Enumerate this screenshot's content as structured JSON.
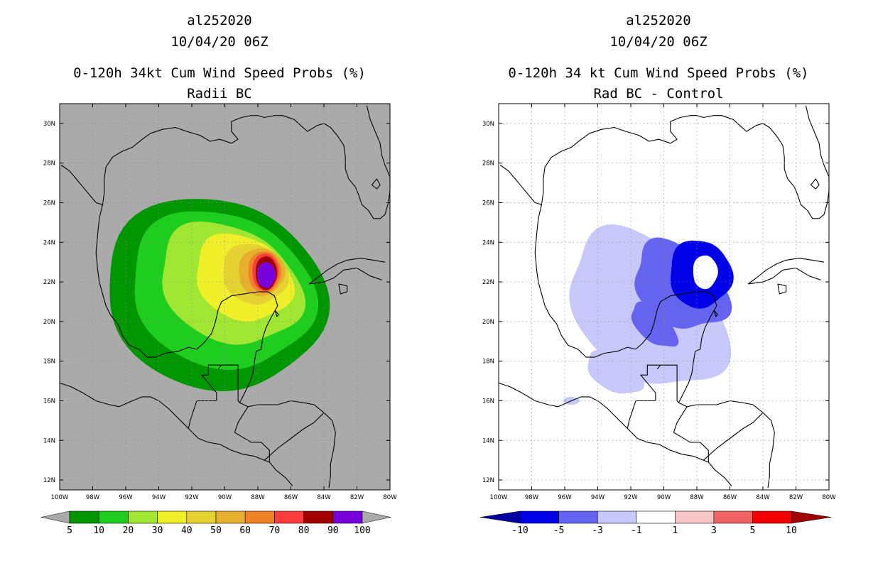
{
  "left": {
    "storm": "al252020",
    "date": "10/04/20 06Z",
    "product": "0-120h 34kt Cum Wind Speed Probs (%)",
    "subtitle": "Radii BC",
    "colorbar_labels": [
      "5",
      "10",
      "20",
      "30",
      "40",
      "50",
      "60",
      "70",
      "80",
      "90",
      "100"
    ],
    "colorbar_colors": [
      "#009600",
      "#1ecd1e",
      "#a0e632",
      "#f0f02a",
      "#e6d232",
      "#e6af2d",
      "#f08228",
      "#fa3c3c",
      "#a00000",
      "#7800dc"
    ],
    "background": "#aaaaaa"
  },
  "right": {
    "storm": "al252020",
    "date": "10/04/20 06Z",
    "product": "0-120h 34 kt Cum Wind Speed Probs (%)",
    "subtitle": "Rad BC - Control",
    "colorbar_labels": [
      "-10",
      "-5",
      "-3",
      "-1",
      "1",
      "3",
      "5",
      "10"
    ],
    "colorbar_colors": [
      "#0000e6",
      "#6464f0",
      "#c8c8fa",
      "#ffffff",
      "#fac8c8",
      "#f06464",
      "#f00000"
    ],
    "background": "#ffffff"
  },
  "axes": {
    "lat_labels": [
      "30N",
      "28N",
      "26N",
      "24N",
      "22N",
      "20N",
      "18N",
      "16N",
      "14N",
      "12N"
    ],
    "lon_labels": [
      "100W",
      "98W",
      "96W",
      "94W",
      "92W",
      "90W",
      "88W",
      "86W",
      "84W",
      "82W",
      "80W"
    ]
  }
}
